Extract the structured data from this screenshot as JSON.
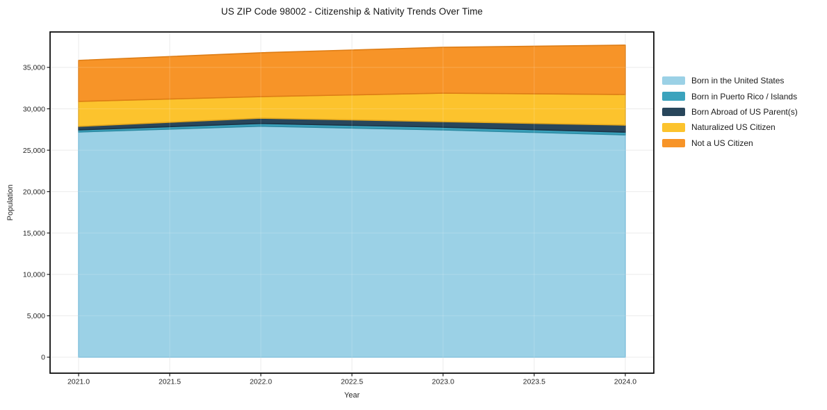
{
  "page": {
    "background": "#ffffff"
  },
  "chart_data": {
    "type": "area",
    "stacked": true,
    "title": "US ZIP Code 98002 - Citizenship & Nativity Trends Over Time",
    "xlabel": "Year",
    "ylabel": "Population",
    "x": [
      2021,
      2022,
      2023,
      2024
    ],
    "series": [
      {
        "name": "Born in the United States",
        "color": "#9bd1e6",
        "edge": "#79bcd9",
        "values": [
          27200,
          27900,
          27450,
          26850
        ]
      },
      {
        "name": "Born in Puerto Rico / Islands",
        "color": "#3ba3bd",
        "edge": "#2e8ca4",
        "values": [
          250,
          330,
          330,
          330
        ]
      },
      {
        "name": "Born Abroad of US Parent(s)",
        "color": "#28465b",
        "edge": "#1c3446",
        "values": [
          430,
          640,
          670,
          850
        ]
      },
      {
        "name": "Naturalized US Citizen",
        "color": "#fcc32d",
        "edge": "#e2a71d",
        "values": [
          3010,
          2600,
          3440,
          3700
        ]
      },
      {
        "name": "Not a US Citizen",
        "color": "#f79428",
        "edge": "#de7d15",
        "values": [
          4960,
          5300,
          5540,
          5960
        ]
      }
    ],
    "totals": [
      35850,
      36770,
      37430,
      37690
    ],
    "xlim": [
      2020.8435,
      2024.1565
    ],
    "ylim": [
      -1930,
      39280
    ],
    "xticks": {
      "values": [
        2021.0,
        2021.5,
        2022.0,
        2022.5,
        2023.0,
        2023.5,
        2024.0
      ],
      "labels": [
        "2021.0",
        "2021.5",
        "2022.0",
        "2022.5",
        "2023.0",
        "2023.5",
        "2024.0"
      ]
    },
    "yticks": {
      "values": [
        0,
        5000,
        10000,
        15000,
        20000,
        25000,
        30000,
        35000
      ],
      "labels": [
        "0",
        "5,000",
        "10,000",
        "15,000",
        "20,000",
        "25,000",
        "30,000",
        "35,000"
      ]
    },
    "grid": true,
    "legend_position": "center-right"
  },
  "colors": {
    "grid": "#e7e7e7",
    "spine": "#0d0d0d",
    "tick_text": "#262626",
    "title_text": "#161616"
  }
}
